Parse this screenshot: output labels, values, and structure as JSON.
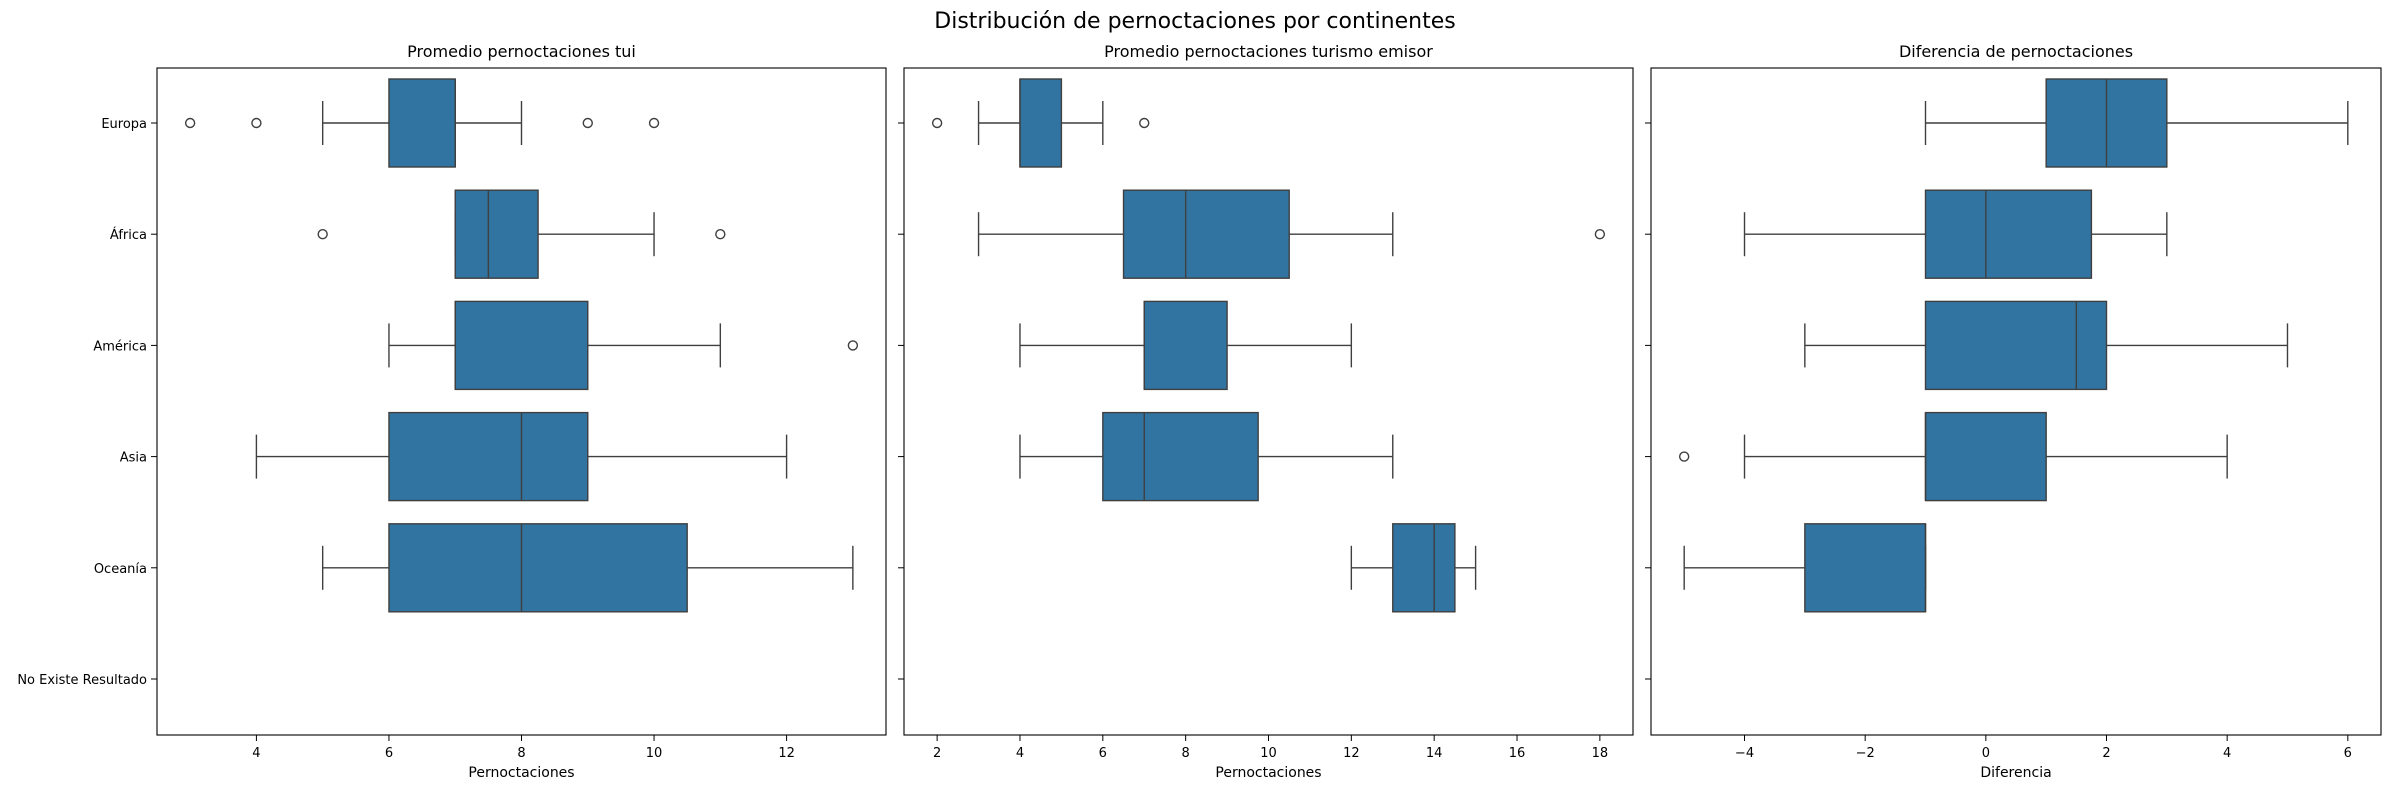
{
  "figure_title": "Distribución de pernoctaciones por continentes",
  "chart_data": [
    {
      "type": "boxplot",
      "orientation": "horizontal",
      "title": "Promedio pernoctaciones tui",
      "xlabel": "Pernoctaciones",
      "ylabel": "",
      "categories": [
        "Europa",
        "África",
        "América",
        "Asia",
        "Oceanía",
        "No Existe Resultado"
      ],
      "xlim": [
        2.5,
        13.5
      ],
      "xticks": [
        4,
        6,
        8,
        10,
        12
      ],
      "color": "#3274a1",
      "grid": false,
      "boxes": [
        {
          "category": "Europa",
          "whisker_low": 5,
          "q1": 6,
          "median": 7,
          "q3": 7,
          "whisker_high": 8,
          "outliers": [
            3,
            4,
            9,
            10
          ]
        },
        {
          "category": "África",
          "whisker_low": 7,
          "q1": 7,
          "median": 7.5,
          "q3": 8.25,
          "whisker_high": 10,
          "outliers": [
            5,
            11
          ]
        },
        {
          "category": "América",
          "whisker_low": 6,
          "q1": 7,
          "median": 7,
          "q3": 9,
          "whisker_high": 11,
          "outliers": [
            13
          ]
        },
        {
          "category": "Asia",
          "whisker_low": 4,
          "q1": 6,
          "median": 8,
          "q3": 9,
          "whisker_high": 12,
          "outliers": []
        },
        {
          "category": "Oceanía",
          "whisker_low": 5,
          "q1": 6,
          "median": 8,
          "q3": 10.5,
          "whisker_high": 13,
          "outliers": []
        }
      ]
    },
    {
      "type": "boxplot",
      "orientation": "horizontal",
      "title": "Promedio pernoctaciones turismo emisor",
      "xlabel": "Pernoctaciones",
      "ylabel": "",
      "categories": [
        "Europa",
        "África",
        "América",
        "Asia",
        "Oceanía",
        "No Existe Resultado"
      ],
      "xlim": [
        1.2,
        18.8
      ],
      "xticks": [
        2,
        4,
        6,
        8,
        10,
        12,
        14,
        16,
        18
      ],
      "color": "#3274a1",
      "grid": false,
      "boxes": [
        {
          "category": "Europa",
          "whisker_low": 3,
          "q1": 4,
          "median": 4,
          "q3": 5,
          "whisker_high": 6,
          "outliers": [
            2,
            7
          ]
        },
        {
          "category": "África",
          "whisker_low": 3,
          "q1": 6.5,
          "median": 8,
          "q3": 10.5,
          "whisker_high": 13,
          "outliers": [
            18
          ]
        },
        {
          "category": "América",
          "whisker_low": 4,
          "q1": 7,
          "median": 7,
          "q3": 9,
          "whisker_high": 12,
          "outliers": []
        },
        {
          "category": "Asia",
          "whisker_low": 4,
          "q1": 6,
          "median": 7,
          "q3": 9.75,
          "whisker_high": 13,
          "outliers": []
        },
        {
          "category": "Oceanía",
          "whisker_low": 12,
          "q1": 13,
          "median": 14,
          "q3": 14.5,
          "whisker_high": 15,
          "outliers": []
        }
      ]
    },
    {
      "type": "boxplot",
      "orientation": "horizontal",
      "title": "Diferencia de pernoctaciones",
      "xlabel": "Diferencia",
      "ylabel": "",
      "categories": [
        "Europa",
        "África",
        "América",
        "Asia",
        "Oceanía",
        "No Existe Resultado"
      ],
      "xlim": [
        -5.55,
        6.55
      ],
      "xticks": [
        -4,
        -2,
        0,
        2,
        4,
        6
      ],
      "xtick_labels": [
        "−4",
        "−2",
        "0",
        "2",
        "4",
        "6"
      ],
      "color": "#3274a1",
      "grid": false,
      "boxes": [
        {
          "category": "Europa",
          "whisker_low": -1,
          "q1": 1,
          "median": 2,
          "q3": 3,
          "whisker_high": 6,
          "outliers": []
        },
        {
          "category": "África",
          "whisker_low": -4,
          "q1": -1,
          "median": 0,
          "q3": 1.75,
          "whisker_high": 3,
          "outliers": []
        },
        {
          "category": "América",
          "whisker_low": -3,
          "q1": -1,
          "median": 1.5,
          "q3": 2,
          "whisker_high": 5,
          "outliers": []
        },
        {
          "category": "Asia",
          "whisker_low": -4,
          "q1": -1,
          "median": -1,
          "q3": 1,
          "whisker_high": 4,
          "outliers": [
            -5
          ]
        },
        {
          "category": "Oceanía",
          "whisker_low": -5,
          "q1": -3,
          "median": -1,
          "q3": -1,
          "whisker_high": -1,
          "outliers": []
        }
      ]
    }
  ]
}
